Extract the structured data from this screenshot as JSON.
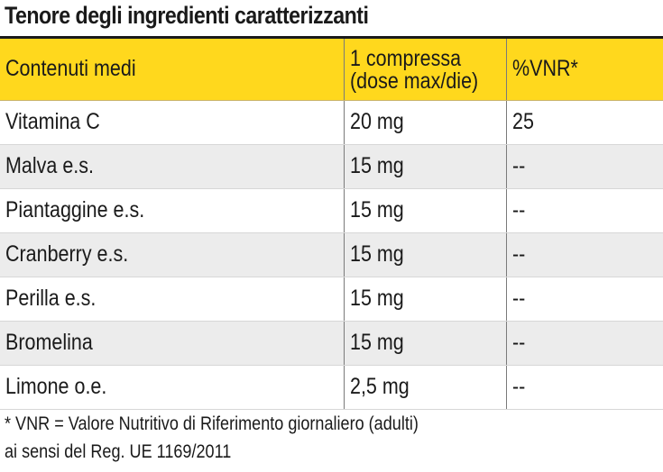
{
  "title": "Tenore degli ingredienti caratterizzanti",
  "colors": {
    "header_bg": "#ffd81d",
    "shaded_row": "#ececec",
    "text": "#1a1a1a"
  },
  "table": {
    "headers": {
      "col1": "Contenuti medi",
      "col2_line1": "1 compressa",
      "col2_line2": "(dose max/die)",
      "col3": "%VNR*"
    },
    "rows": [
      {
        "name": "Vitamina C",
        "amount": "20 mg",
        "vnr": "25"
      },
      {
        "name": "Malva e.s.",
        "amount": "15 mg",
        "vnr": "--"
      },
      {
        "name": "Piantaggine e.s.",
        "amount": "15 mg",
        "vnr": "--"
      },
      {
        "name": "Cranberry e.s.",
        "amount": "15 mg",
        "vnr": "--"
      },
      {
        "name": "Perilla e.s.",
        "amount": "15 mg",
        "vnr": "--"
      },
      {
        "name": "Bromelina",
        "amount": "15 mg",
        "vnr": "--"
      },
      {
        "name": "Limone o.e.",
        "amount": "2,5 mg",
        "vnr": "--"
      }
    ]
  },
  "footnote": {
    "line1": "* VNR = Valore Nutritivo di Riferimento giornaliero (adulti)",
    "line2": "ai sensi del Reg. UE 1169/2011"
  }
}
